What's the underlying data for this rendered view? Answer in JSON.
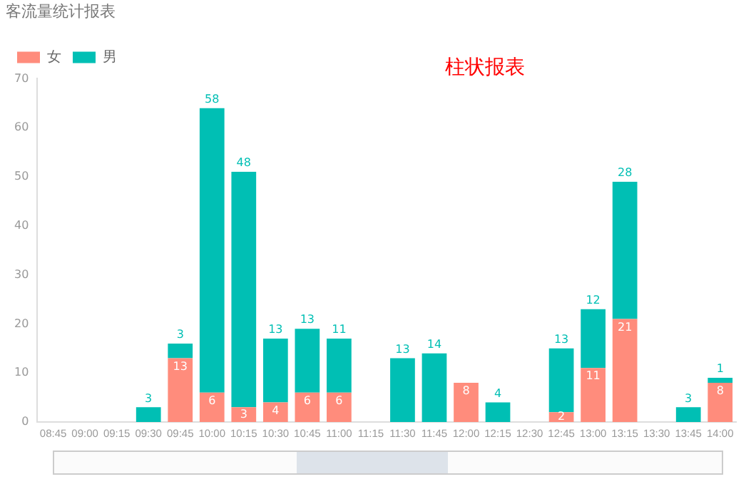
{
  "chart_data": {
    "type": "bar",
    "title": "客流量统计报表",
    "annotations": [
      "柱状报表"
    ],
    "categories": [
      "08:45",
      "09:00",
      "09:15",
      "09:30",
      "09:45",
      "10:00",
      "10:15",
      "10:30",
      "10:45",
      "11:00",
      "11:15",
      "11:30",
      "11:45",
      "12:00",
      "12:15",
      "12:30",
      "12:45",
      "13:00",
      "13:15",
      "13:30",
      "13:45",
      "14:00"
    ],
    "stacked": true,
    "data_labels": true,
    "legend": "top left",
    "grid": false,
    "ylim": [
      0,
      70
    ],
    "yticks": [
      0,
      10,
      20,
      30,
      40,
      50,
      60,
      70
    ],
    "series": [
      {
        "name": "女",
        "color": "#ff8c7c",
        "values": [
          null,
          null,
          null,
          null,
          13,
          6,
          3,
          4,
          6,
          6,
          null,
          null,
          null,
          8,
          null,
          null,
          2,
          11,
          21,
          null,
          null,
          8
        ]
      },
      {
        "name": "男",
        "color": "#00bfb4",
        "values": [
          null,
          null,
          null,
          3,
          3,
          58,
          48,
          13,
          13,
          11,
          null,
          13,
          14,
          null,
          4,
          null,
          13,
          12,
          28,
          null,
          3,
          1
        ]
      }
    ]
  }
}
